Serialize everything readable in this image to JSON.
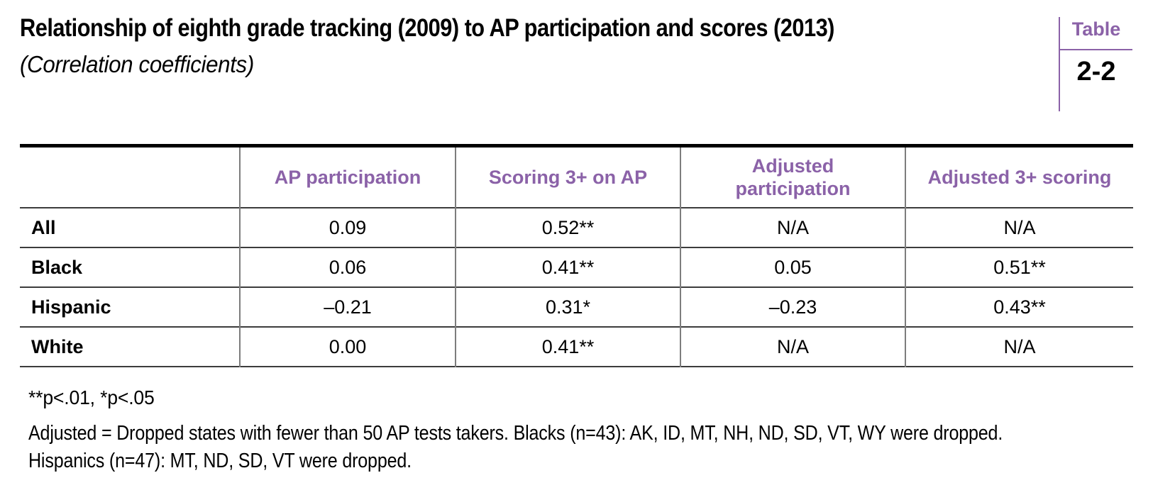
{
  "header": {
    "title": "Relationship of eighth grade tracking (2009) to AP participation and scores (2013)",
    "subtitle": "(Correlation coefficients)",
    "badge": {
      "label": "Table",
      "number": "2-2"
    }
  },
  "chart_data": {
    "type": "table",
    "title": "Relationship of eighth grade tracking (2009) to AP participation and scores (2013)",
    "subtitle": "(Correlation coefficients)",
    "table_number": "Table 2-2",
    "columns": [
      "",
      "AP participation",
      "Scoring 3+ on AP",
      "Adjusted participation",
      "Adjusted 3+ scoring"
    ],
    "rows": [
      {
        "label": "All",
        "values": [
          "0.09",
          "0.52**",
          "N/A",
          "N/A"
        ]
      },
      {
        "label": "Black",
        "values": [
          "0.06",
          "0.41**",
          "0.05",
          "0.51**"
        ]
      },
      {
        "label": "Hispanic",
        "values": [
          "–0.21",
          "0.31*",
          "–0.23",
          "0.43**"
        ]
      },
      {
        "label": "White",
        "values": [
          "0.00",
          "0.41**",
          "N/A",
          "N/A"
        ]
      }
    ],
    "notes": [
      "**p<.01, *p<.05",
      "Adjusted = Dropped states with fewer than 50 AP tests takers. Blacks (n=43): AK, ID, MT, NH, ND, SD, VT, WY were dropped. Hispanics (n=47): MT, ND, SD, VT were dropped."
    ]
  },
  "colors": {
    "accent_purple": "#8b62a8",
    "row_line_gray": "#3c3c3c",
    "column_line_gray": "#7d7d7d",
    "top_border_black": "#000000",
    "background": "#ffffff"
  }
}
